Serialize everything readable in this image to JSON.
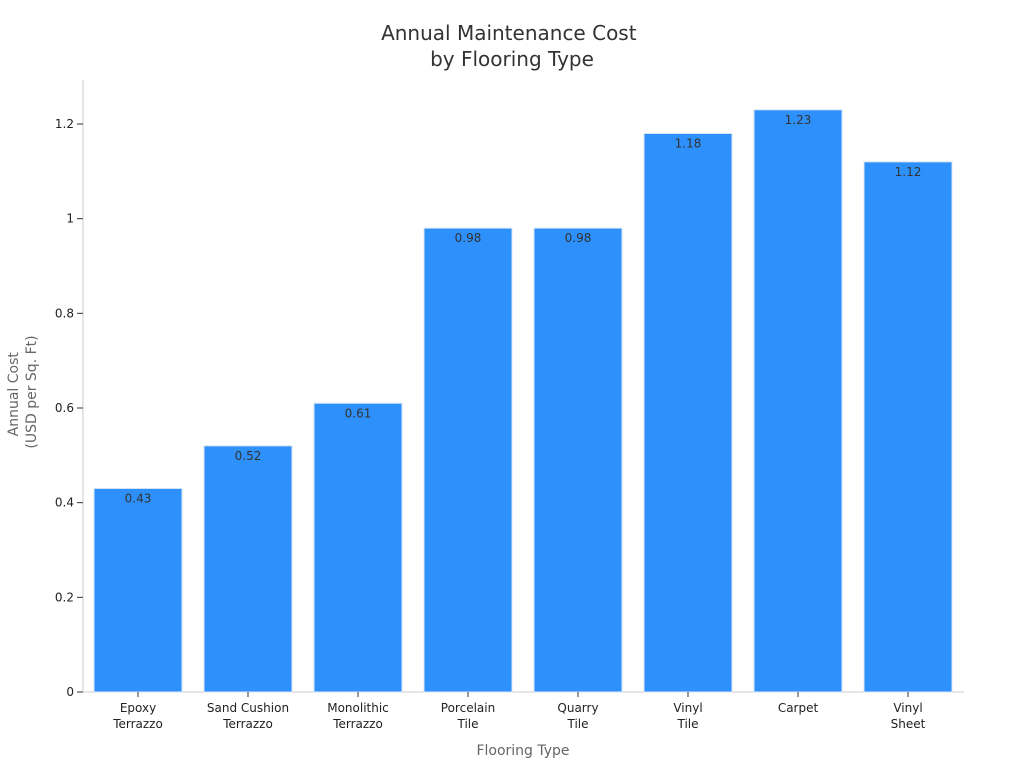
{
  "chart_data": {
    "type": "bar",
    "title": [
      "Annual Maintenance Cost",
      "by Flooring Type"
    ],
    "xlabel": "Flooring Type",
    "ylabel": [
      "Annual Cost",
      "(USD per Sq. Ft)"
    ],
    "categories": [
      [
        "Epoxy",
        "Terrazzo"
      ],
      [
        "Sand Cushion",
        "Terrazzo"
      ],
      [
        "Monolithic",
        "Terrazzo"
      ],
      [
        "Porcelain",
        "Tile"
      ],
      [
        "Quarry",
        "Tile"
      ],
      [
        "Vinyl",
        "Tile"
      ],
      [
        "Carpet"
      ],
      [
        "Vinyl",
        "Sheet"
      ]
    ],
    "values": [
      0.43,
      0.52,
      0.61,
      0.98,
      0.98,
      1.18,
      1.23,
      1.12
    ],
    "data_labels": [
      "0.43",
      "0.52",
      "0.61",
      "0.98",
      "0.98",
      "1.18",
      "1.23",
      "1.12"
    ],
    "ylim": [
      0,
      1.3
    ],
    "yticks": [
      0,
      0.2,
      0.4,
      0.6,
      0.8,
      1,
      1.2
    ],
    "ytick_labels": [
      "0",
      "0.2",
      "0.4",
      "0.6",
      "0.8",
      "1",
      "1.2"
    ],
    "grid": false,
    "legend": "none",
    "colors": {
      "bar": "#2e90fa",
      "bar_edge": "#d7e6f5",
      "axis": "#cccccc"
    }
  }
}
